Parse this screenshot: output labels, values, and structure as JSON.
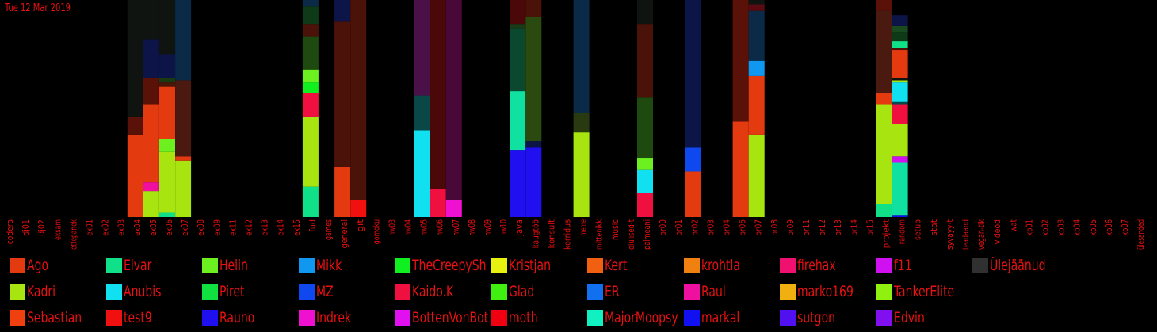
{
  "date": "Tue 12 Mar 2019",
  "chart_data": {
    "type": "bar",
    "stacked": true,
    "normalized": true,
    "ylim": [
      0,
      1
    ],
    "categories": [
      "codera",
      "dj01",
      "dj02",
      "eksam",
      "ettepanek",
      "ex01",
      "ex02",
      "ex03",
      "ex04",
      "ex05",
      "ex06",
      "ex07",
      "ex08",
      "ex09",
      "ex11",
      "ex12",
      "ex13",
      "ex14",
      "ex15",
      "fud",
      "games",
      "general",
      "git",
      "gomoku",
      "hw03",
      "hw04",
      "hw05",
      "hw06",
      "hw07",
      "hw08",
      "hw09",
      "hw10",
      "java",
      "kaugtöö",
      "konsult",
      "korridus",
      "meme",
      "mittenikk",
      "music",
      "olulised-t",
      "palmeani",
      "pr00",
      "pr01",
      "pr02",
      "pr03",
      "pr04",
      "pr06",
      "pr07",
      "pr08",
      "pr09",
      "pr11",
      "pr12",
      "pr13",
      "pr14",
      "pr15",
      "projekt",
      "random",
      "setup",
      "stat",
      "syvayy-t",
      "teadaand",
      "vegan-tik",
      "videod",
      "wat",
      "xp01",
      "xp02",
      "xp03",
      "xp04",
      "xp05",
      "xp06",
      "xp07",
      "ülesanded"
    ],
    "users": [
      {
        "name": "Ago",
        "color": "#e43a10"
      },
      {
        "name": "Elvar",
        "color": "#10e088"
      },
      {
        "name": "Helin",
        "color": "#6cf020"
      },
      {
        "name": "Mikk",
        "color": "#1098f0"
      },
      {
        "name": "TheCreepySh",
        "color": "#10f020"
      },
      {
        "name": "Kristjan",
        "color": "#e8f010"
      },
      {
        "name": "Kert",
        "color": "#f06010"
      },
      {
        "name": "krohtla",
        "color": "#f08010"
      },
      {
        "name": "firehax",
        "color": "#f01070"
      },
      {
        "name": "f11",
        "color": "#d010f0"
      },
      {
        "name": "Ülejäänud",
        "color": "#303030"
      },
      {
        "name": "Kadri",
        "color": "#a8e410"
      },
      {
        "name": "Anubis",
        "color": "#10e0f0"
      },
      {
        "name": "Piret",
        "color": "#10e040"
      },
      {
        "name": "MZ",
        "color": "#1048f0"
      },
      {
        "name": "Kaido.K",
        "color": "#f01040"
      },
      {
        "name": "Glad",
        "color": "#40f010"
      },
      {
        "name": "ER",
        "color": "#1070f0"
      },
      {
        "name": "Raul",
        "color": "#f010a0"
      },
      {
        "name": "marko169",
        "color": "#f0b010"
      },
      {
        "name": "TankerElite",
        "color": "#90f010"
      },
      {
        "name": "Sebastian",
        "color": "#f04010"
      },
      {
        "name": "test9",
        "color": "#f01010"
      },
      {
        "name": "Rauno",
        "color": "#2010f0"
      },
      {
        "name": "Indrek",
        "color": "#f010d0"
      },
      {
        "name": "BottenVonBot",
        "color": "#e010f0"
      },
      {
        "name": "moth",
        "color": "#f00010"
      },
      {
        "name": "MajorMoopsy",
        "color": "#10f0c0"
      },
      {
        "name": "markal",
        "color": "#1010f0"
      },
      {
        "name": "sutgon",
        "color": "#5010f0"
      },
      {
        "name": "Edvin",
        "color": "#8010f0"
      }
    ],
    "stacks": {
      "ex04": [
        {
          "c": "#e43a10",
          "v": 0.38
        },
        {
          "c": "#5a1208",
          "v": 0.08
        },
        {
          "c": "#101410",
          "v": 0.54
        }
      ],
      "ex05": [
        {
          "c": "#a8e410",
          "v": 0.12
        },
        {
          "c": "#f010a0",
          "v": 0.04
        },
        {
          "c": "#e43a10",
          "v": 0.36
        },
        {
          "c": "#5a1208",
          "v": 0.12
        },
        {
          "c": "#0c1448",
          "v": 0.18
        },
        {
          "c": "#101410",
          "v": 0.18
        }
      ],
      "ex06": [
        {
          "c": "#10e088",
          "v": 0.02
        },
        {
          "c": "#a8e410",
          "v": 0.28
        },
        {
          "c": "#6cf020",
          "v": 0.06
        },
        {
          "c": "#e43a10",
          "v": 0.24
        },
        {
          "c": "#4a1608",
          "v": 0.02
        },
        {
          "c": "#1a3a10",
          "v": 0.02
        },
        {
          "c": "#0c1448",
          "v": 0.11
        },
        {
          "c": "#101410",
          "v": 0.25
        }
      ],
      "ex07": [
        {
          "c": "#a8e410",
          "v": 0.26
        },
        {
          "c": "#e43a10",
          "v": 0.02
        },
        {
          "c": "#4a1a10",
          "v": 0.35
        },
        {
          "c": "#0a2a48",
          "v": 0.37
        }
      ],
      "fud": [
        {
          "c": "#10e088",
          "v": 0.14
        },
        {
          "c": "#a8e410",
          "v": 0.32
        },
        {
          "c": "#f01040",
          "v": 0.11
        },
        {
          "c": "#10f020",
          "v": 0.05
        },
        {
          "c": "#6cf020",
          "v": 0.06
        },
        {
          "c": "#1e4a10",
          "v": 0.15
        },
        {
          "c": "#4a1208",
          "v": 0.06
        },
        {
          "c": "#0e3a18",
          "v": 0.08
        },
        {
          "c": "#0a2a48",
          "v": 0.03
        }
      ],
      "general": [
        {
          "c": "#e43a10",
          "v": 0.23
        },
        {
          "c": "#4a1208",
          "v": 0.67
        },
        {
          "c": "#0c1448",
          "v": 0.1
        }
      ],
      "git": [
        {
          "c": "#f01010",
          "v": 0.08
        },
        {
          "c": "#4a1208",
          "v": 0.92
        }
      ],
      "hw05": [
        {
          "c": "#10e0f0",
          "v": 0.4
        },
        {
          "c": "#0a4848",
          "v": 0.16
        },
        {
          "c": "#4a1048",
          "v": 0.44
        }
      ],
      "hw06": [
        {
          "c": "#f01040",
          "v": 0.13
        },
        {
          "c": "#4a0808",
          "v": 0.87
        }
      ],
      "hw07": [
        {
          "c": "#f010d0",
          "v": 0.08
        },
        {
          "c": "#4a0838",
          "v": 0.92
        }
      ],
      "java": [
        {
          "c": "#2010f0",
          "v": 0.31
        },
        {
          "c": "#10e0a0",
          "v": 0.27
        },
        {
          "c": "#0a4830",
          "v": 0.29
        },
        {
          "c": "#1a3a18",
          "v": 0.02
        },
        {
          "c": "#4a0808",
          "v": 0.11
        }
      ],
      "kaugtöö": [
        {
          "c": "#2010f0",
          "v": 0.32
        },
        {
          "c": "#0c1448",
          "v": 0.03
        },
        {
          "c": "#2a4a10",
          "v": 0.57
        },
        {
          "c": "#4a1208",
          "v": 0.08
        }
      ],
      "meme": [
        {
          "c": "#a8e410",
          "v": 0.39
        },
        {
          "c": "#2a3a10",
          "v": 0.09
        },
        {
          "c": "#0a2a48",
          "v": 0.52
        }
      ],
      "palmeani": [
        {
          "c": "#f01040",
          "v": 0.11
        },
        {
          "c": "#10e0f0",
          "v": 0.11
        },
        {
          "c": "#6cf020",
          "v": 0.05
        },
        {
          "c": "#1e4a10",
          "v": 0.28
        },
        {
          "c": "#4a1208",
          "v": 0.34
        },
        {
          "c": "#101410",
          "v": 0.11
        }
      ],
      "pr02": [
        {
          "c": "#e43a10",
          "v": 0.21
        },
        {
          "c": "#1048f0",
          "v": 0.11
        },
        {
          "c": "#0c1448",
          "v": 0.68
        }
      ],
      "pr06": [
        {
          "c": "#e43a10",
          "v": 0.44
        },
        {
          "c": "#5a1208",
          "v": 0.56
        }
      ],
      "pr07": [
        {
          "c": "#a8e410",
          "v": 0.38
        },
        {
          "c": "#e43a10",
          "v": 0.27
        },
        {
          "c": "#1098f0",
          "v": 0.07
        },
        {
          "c": "#0a2a48",
          "v": 0.23
        },
        {
          "c": "#5a0a10",
          "v": 0.03
        },
        {
          "c": "#101410",
          "v": 0.02
        }
      ],
      "random": [
        {
          "c": "#1010f0",
          "v": 0.01
        },
        {
          "c": "#10e0a0",
          "v": 0.24
        },
        {
          "c": "#d010f0",
          "v": 0.03
        },
        {
          "c": "#a8e410",
          "v": 0.15
        },
        {
          "c": "#f01040",
          "v": 0.09
        },
        {
          "c": "#0a4848",
          "v": 0.01
        },
        {
          "c": "#10e0f0",
          "v": 0.09
        },
        {
          "c": "#a8e410",
          "v": 0.01
        },
        {
          "c": "#101410",
          "v": 0.01
        },
        {
          "c": "#e43a10",
          "v": 0.13
        },
        {
          "c": "#4a1208",
          "v": 0.01
        },
        {
          "c": "#10e088",
          "v": 0.03
        },
        {
          "c": "#0e3a18",
          "v": 0.04
        },
        {
          "c": "#1a4a20",
          "v": 0.03
        },
        {
          "c": "#0c1448",
          "v": 0.05
        }
      ],
      "projekt": [
        {
          "c": "#10e088",
          "v": 0.06
        },
        {
          "c": "#a8e410",
          "v": 0.46
        },
        {
          "c": "#e43a10",
          "v": 0.05
        },
        {
          "c": "#4a1a10",
          "v": 0.38
        },
        {
          "c": "#5a1208",
          "v": 0.05
        }
      ]
    }
  }
}
